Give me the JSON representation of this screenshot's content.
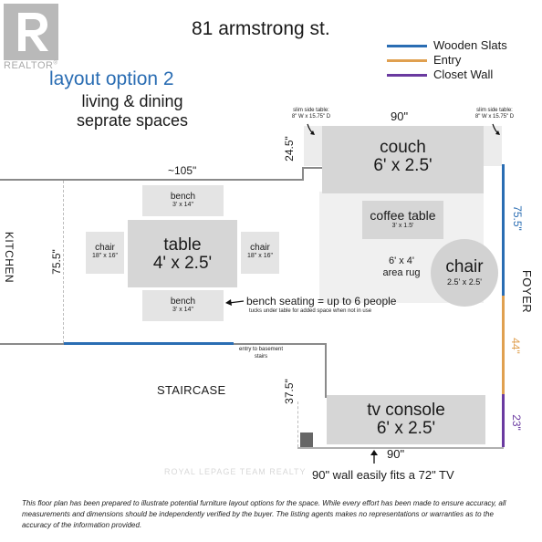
{
  "logo": {
    "text": "REALTOR",
    "trademark": "®"
  },
  "title": "81 armstrong st.",
  "subtitle": "layout option 2",
  "subtitle2_line1": "living & dining",
  "subtitle2_line2": "seprate spaces",
  "legend": [
    {
      "label": "Wooden Slats",
      "color": "#2a6db3"
    },
    {
      "label": "Entry",
      "color": "#e0a050"
    },
    {
      "label": "Closet Wall",
      "color": "#6a3aa0"
    }
  ],
  "colors": {
    "wooden_slats": "#2a6db3",
    "entry": "#e0a050",
    "closet_wall": "#6a3aa0",
    "subtitle": "#2a6db3"
  },
  "side_tables": {
    "left_line1": "slim side table:",
    "left_line2": "8\" W x 15.75\" D",
    "right_line1": "slim side table:",
    "right_line2": "8\" W x 15.75\" D"
  },
  "dims": {
    "top_width": "90\"",
    "couch_depth": "24.5\"",
    "dining_width": "~105\"",
    "dining_depth": "75.5\"",
    "right_wall": "75.5\"",
    "entry": "44\"",
    "closet": "23\"",
    "stair_depth": "37.5\"",
    "bottom_width": "90\""
  },
  "rooms": {
    "kitchen": "KITCHEN",
    "foyer": "FOYER",
    "staircase": "STAIRCASE"
  },
  "furniture": {
    "couch": {
      "name": "couch",
      "size": "6' x 2.5'"
    },
    "coffee_table": {
      "name": "coffee table",
      "size": "3' x 1.5'"
    },
    "rug": {
      "line1": "6' x 4'",
      "line2": "area rug"
    },
    "chair_round": {
      "name": "chair",
      "size": "2.5' x 2.5'"
    },
    "table": {
      "name": "table",
      "size": "4' x 2.5'"
    },
    "bench_top": {
      "name": "bench",
      "size": "3' x 14\""
    },
    "bench_bottom": {
      "name": "bench",
      "size": "3' x 14\""
    },
    "chair_left": {
      "name": "chair",
      "size": "18\" x 16\""
    },
    "chair_right": {
      "name": "chair",
      "size": "18\" x 16\""
    },
    "tv_console": {
      "name": "tv console",
      "size": "6' x 2.5'"
    }
  },
  "notes": {
    "bench_seating": "bench seating = up to 6 people",
    "bench_tucks": "tucks under table for added space when not in use",
    "basement_line1": "entry to basement",
    "basement_line2": "stairs",
    "tv_wall": "90\" wall easily fits a 72\" TV"
  },
  "watermark": "ROYAL LEPAGE TEAM REALTY",
  "disclaimer": "This floor plan has been prepared to illustrate potential furniture layout options for the space. While every effort has been made to ensure accuracy, all measurements and dimensions should be independently verified by the buyer. The listing agents makes no representations or warranties as to the accuracy of the information provided."
}
